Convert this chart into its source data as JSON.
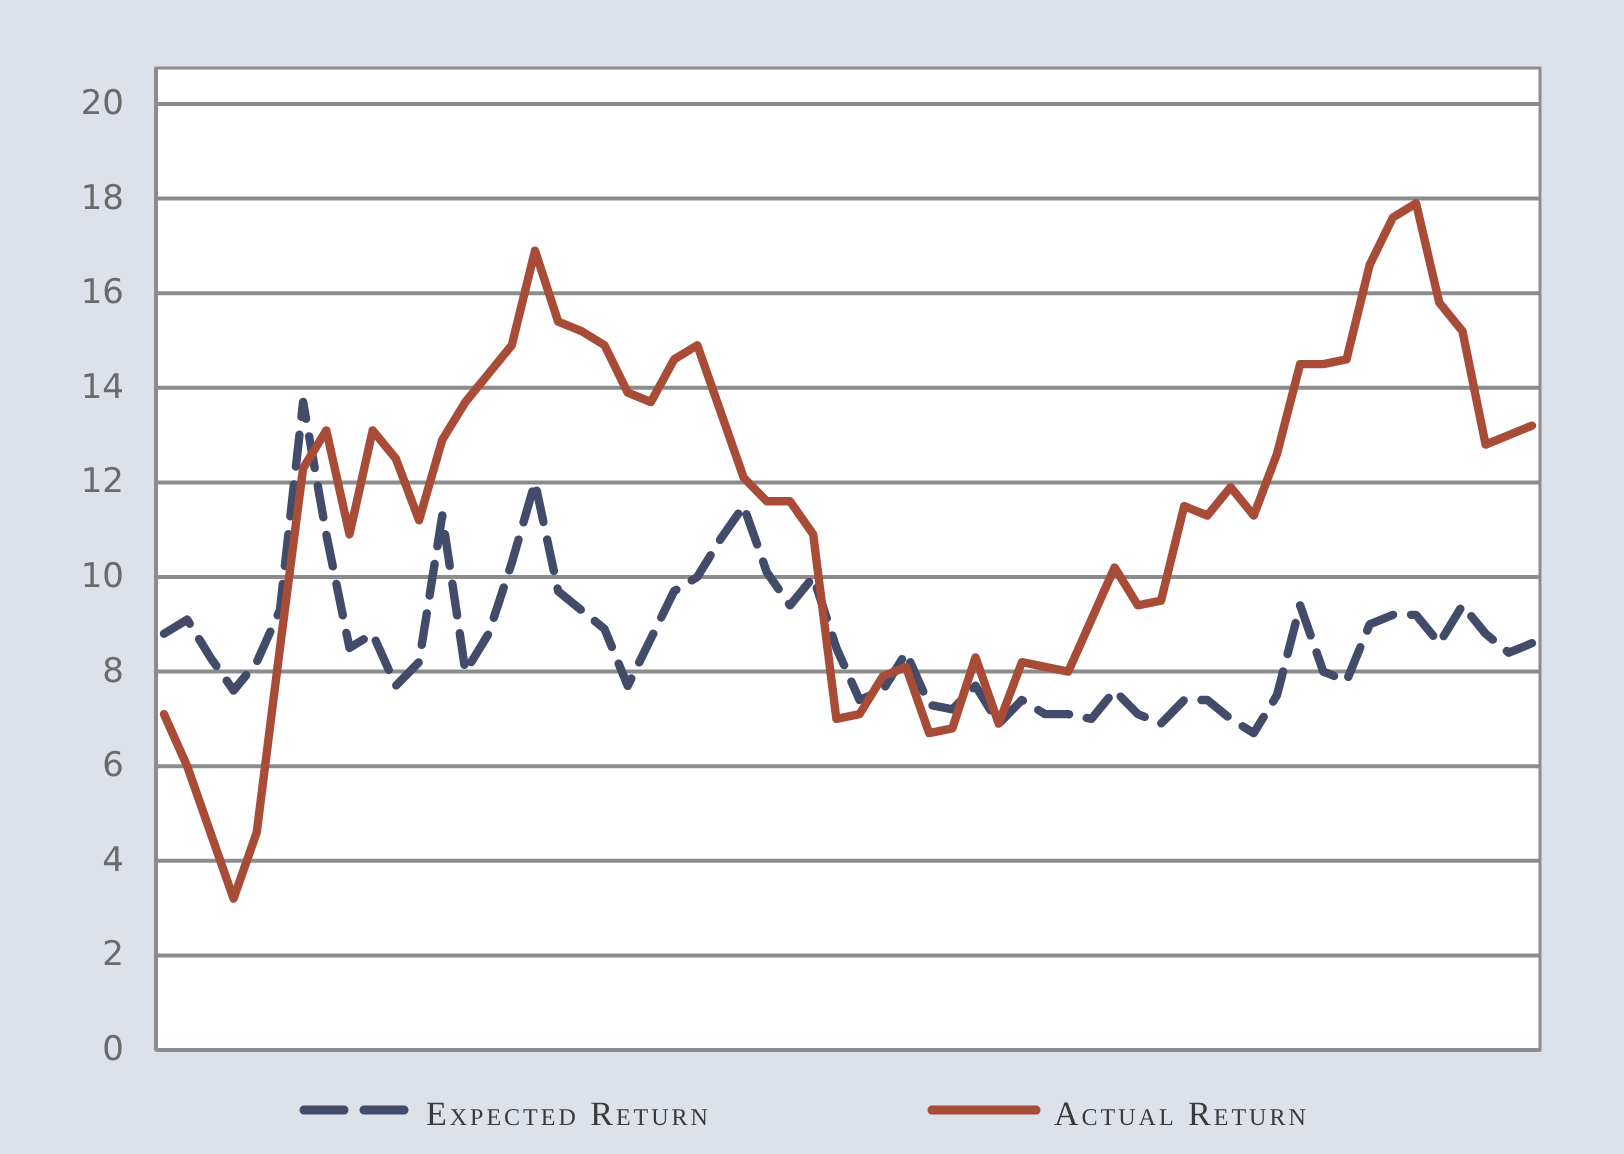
{
  "chart_data": {
    "type": "line",
    "categories": [
      null,
      null,
      null,
      null,
      null,
      null,
      null,
      null,
      null,
      null,
      null,
      null,
      null,
      null,
      null,
      null,
      null,
      null,
      null,
      null,
      null,
      null,
      null,
      null,
      null,
      null,
      null,
      null,
      null,
      null,
      null,
      null,
      null,
      null,
      null,
      null,
      null,
      null,
      null,
      null,
      null,
      null,
      null,
      null,
      null,
      null,
      null,
      null,
      null,
      null,
      null,
      null,
      null,
      null,
      null,
      null,
      null,
      null,
      null,
      null
    ],
    "series": [
      {
        "name": "Expected Return",
        "color": "#424b6a",
        "line_style": "dashed",
        "values": [
          8.8,
          9.1,
          8.3,
          7.6,
          8.2,
          9.3,
          13.7,
          10.9,
          8.5,
          8.8,
          7.7,
          8.2,
          11.3,
          8.0,
          8.8,
          10.3,
          12.0,
          9.7,
          9.3,
          8.9,
          7.7,
          8.7,
          9.7,
          10.0,
          10.8,
          11.5,
          10.1,
          9.4,
          10.0,
          8.5,
          7.4,
          7.6,
          8.4,
          7.3,
          7.2,
          7.7,
          6.9,
          7.4,
          7.1,
          7.1,
          7.0,
          7.6,
          7.1,
          6.9,
          7.4,
          7.4,
          7.0,
          6.7,
          7.5,
          9.4,
          8.0,
          7.8,
          9.0,
          9.2,
          9.2,
          8.6,
          9.4,
          8.8,
          8.4,
          8.6
        ]
      },
      {
        "name": "Actual Return",
        "color": "#a84c38",
        "line_style": "solid",
        "values": [
          7.1,
          6.0,
          4.6,
          3.2,
          4.6,
          8.5,
          12.3,
          13.1,
          10.9,
          13.1,
          12.5,
          11.2,
          12.9,
          13.7,
          14.3,
          14.9,
          16.9,
          15.4,
          15.2,
          14.9,
          13.9,
          13.7,
          14.6,
          14.9,
          13.5,
          12.1,
          11.6,
          11.6,
          10.9,
          7.0,
          7.1,
          7.9,
          8.1,
          6.7,
          6.8,
          8.3,
          6.9,
          8.2,
          8.1,
          8.0,
          9.1,
          10.2,
          9.4,
          9.5,
          11.5,
          11.3,
          11.9,
          11.3,
          12.6,
          14.5,
          14.5,
          14.6,
          16.6,
          17.6,
          17.9,
          15.8,
          15.2,
          12.8,
          13.0,
          13.2
        ]
      }
    ],
    "ylim": [
      0,
      20
    ],
    "yticks": [
      0,
      2,
      4,
      6,
      8,
      10,
      12,
      14,
      16,
      18,
      20
    ],
    "grid": "y",
    "legend": "bottom",
    "marker": "none",
    "tick_labels": "y"
  }
}
